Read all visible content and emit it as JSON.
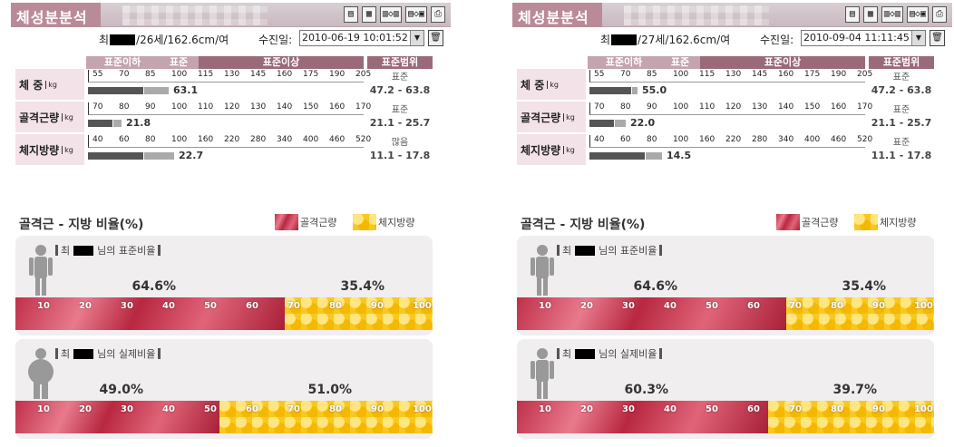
{
  "panels": [
    {
      "title": "체성분분석",
      "tools": [
        "▤",
        "▦",
        "▥◇▥",
        "▤◇▣",
        "⎙"
      ],
      "name_prefix": "최",
      "patient": "/26세/162.6cm/여",
      "date_label": "수진일:",
      "date_value": "2010-06-19 10:01:52",
      "headers": [
        "표준이하",
        "표준",
        "표준이상",
        "표준범위"
      ],
      "rows": [
        {
          "label": "체  중",
          "unit": "kg",
          "scale": [
            "55",
            "70",
            "85",
            "100",
            "115",
            "130",
            "145",
            "160",
            "175",
            "190",
            "205"
          ],
          "value": "63.1",
          "range_status": "표준",
          "range": "47.2 - 63.8"
        },
        {
          "label": "골격근량",
          "unit": "kg",
          "scale": [
            "70",
            "80",
            "90",
            "100",
            "110",
            "120",
            "130",
            "140",
            "150",
            "160",
            "170"
          ],
          "value": "21.8",
          "range_status": "표준",
          "range": "21.1 - 25.7"
        },
        {
          "label": "체지방량",
          "unit": "kg",
          "scale": [
            "40",
            "60",
            "80",
            "100",
            "160",
            "220",
            "280",
            "340",
            "400",
            "460",
            "520"
          ],
          "value": "22.7",
          "range_status": "많음",
          "range": "11.1 - 17.8"
        }
      ],
      "ratio_title": "골격근 - 지방 비율(%)",
      "legend_muscle": "골격근량",
      "legend_fat": "체지방량",
      "std_title": "님의 표준비율",
      "std_muscle": "64.6%",
      "std_fat": "35.4%",
      "std_muscle_frac": 64.6,
      "act_title": "님의 실제비율",
      "act_muscle": "49.0%",
      "act_fat": "51.0%",
      "act_muscle_frac": 49.0,
      "ticks": [
        "10",
        "20",
        "30",
        "40",
        "50",
        "60",
        "70",
        "80",
        "90",
        "100"
      ]
    },
    {
      "title": "체성분분석",
      "tools": [
        "▤",
        "▦",
        "▥◇▥",
        "▤◇▣",
        "⎙"
      ],
      "name_prefix": "최",
      "patient": "/27세/162.6cm/여",
      "date_label": "수진일:",
      "date_value": "2010-09-04 11:11:45",
      "headers": [
        "표준이하",
        "표준",
        "표준이상",
        "표준범위"
      ],
      "rows": [
        {
          "label": "체  중",
          "unit": "kg",
          "scale": [
            "55",
            "70",
            "85",
            "100",
            "115",
            "130",
            "145",
            "160",
            "175",
            "190",
            "205"
          ],
          "value": "55.0",
          "range_status": "표준",
          "range": "47.2 - 63.8"
        },
        {
          "label": "골격근량",
          "unit": "kg",
          "scale": [
            "70",
            "80",
            "90",
            "100",
            "110",
            "120",
            "130",
            "140",
            "150",
            "160",
            "170"
          ],
          "value": "22.0",
          "range_status": "표준",
          "range": "21.1 - 25.7"
        },
        {
          "label": "체지방량",
          "unit": "kg",
          "scale": [
            "40",
            "60",
            "80",
            "100",
            "160",
            "220",
            "280",
            "340",
            "400",
            "460",
            "520"
          ],
          "value": "14.5",
          "range_status": "표준",
          "range": "11.1 - 17.8"
        }
      ],
      "ratio_title": "골격근 - 지방 비율(%)",
      "legend_muscle": "골격근량",
      "legend_fat": "체지방량",
      "std_title": "님의 표준비율",
      "std_muscle": "64.6%",
      "std_fat": "35.4%",
      "std_muscle_frac": 64.6,
      "act_title": "님의 실제비율",
      "act_muscle": "60.3%",
      "act_fat": "39.7%",
      "act_muscle_frac": 60.3,
      "ticks": [
        "10",
        "20",
        "30",
        "40",
        "50",
        "60",
        "70",
        "80",
        "90",
        "100"
      ]
    }
  ],
  "bar_levels": {
    "panel0": [
      [
        0.2,
        0.09
      ],
      [
        0.09,
        0.03
      ],
      [
        0.2,
        0.11
      ]
    ],
    "panel1": [
      [
        0.15,
        0.02
      ],
      [
        0.09,
        0.04
      ],
      [
        0.2,
        0.06
      ]
    ]
  },
  "colors": {
    "header": "#b98b99",
    "dark_bar": "#555555",
    "light_bar": "#aaaaaa",
    "muscle": "#c0304a",
    "fat": "#f8c820"
  }
}
